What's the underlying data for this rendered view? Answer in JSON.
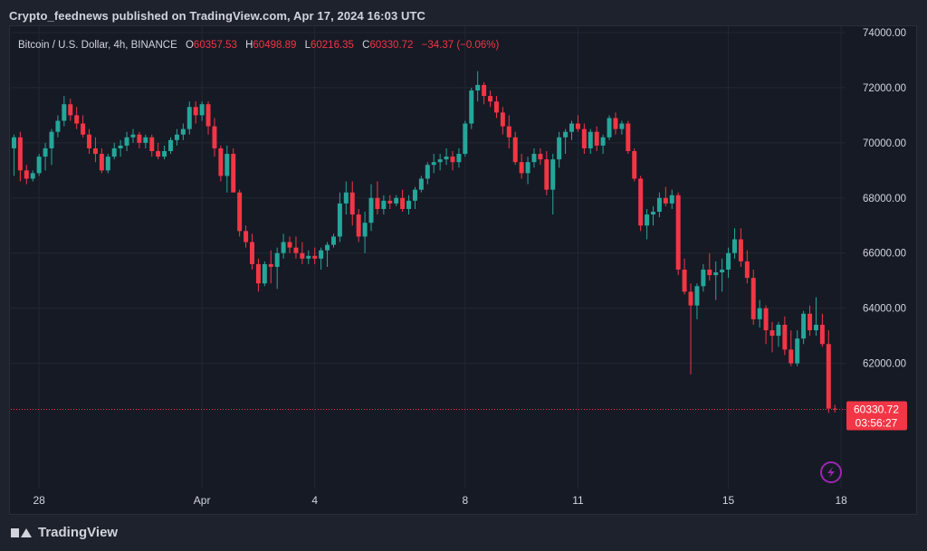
{
  "header": {
    "published": "Crypto_feednews published on TradingView.com, Apr 17, 2024 16:03 UTC"
  },
  "legend": {
    "symbol": "Bitcoin / U.S. Dollar, 4h, BINANCE",
    "o_label": "O",
    "o_value": "60357.53",
    "h_label": "H",
    "h_value": "60498.89",
    "l_label": "L",
    "l_value": "60216.35",
    "c_label": "C",
    "c_value": "60330.72",
    "change": "−34.37 (−0.06%)"
  },
  "price_tag": {
    "price": "60330.72",
    "countdown": "03:56:27"
  },
  "footer": {
    "brand": "TradingView"
  },
  "colors": {
    "up": "#26a69a",
    "down": "#f23645",
    "background": "#161a25",
    "grid": "#232733",
    "text": "#d1d4dc",
    "alert_icon": "#9c27b0"
  },
  "icons": {
    "alert": "lightning-alert-icon",
    "logo": "tradingview-logo-icon"
  },
  "chart_data": {
    "type": "candlestick",
    "interval": "4h",
    "yaxis_side": "right",
    "ylim": [
      59000,
      74000
    ],
    "yticks": [
      "62000.00",
      "64000.00",
      "66000.00",
      "68000.00",
      "70000.00",
      "72000.00",
      "74000.00"
    ],
    "ytick_values": [
      62000,
      64000,
      66000,
      68000,
      70000,
      72000,
      74000
    ],
    "xticks": [
      {
        "label": "28",
        "index": 4
      },
      {
        "label": "Apr",
        "index": 30
      },
      {
        "label": "4",
        "index": 48
      },
      {
        "label": "8",
        "index": 72
      },
      {
        "label": "11",
        "index": 90
      },
      {
        "label": "15",
        "index": 114
      },
      {
        "label": "18",
        "index": 132
      }
    ],
    "last_price": 60330.72,
    "candles": [
      [
        69800,
        70300,
        68800,
        70200
      ],
      [
        70200,
        70400,
        68600,
        69000
      ],
      [
        69000,
        69200,
        68500,
        68700
      ],
      [
        68700,
        69000,
        68600,
        68900
      ],
      [
        68900,
        69600,
        68800,
        69500
      ],
      [
        69500,
        70000,
        69000,
        69800
      ],
      [
        69800,
        70500,
        69200,
        70400
      ],
      [
        70400,
        71000,
        70200,
        70800
      ],
      [
        70800,
        71700,
        70600,
        71400
      ],
      [
        71400,
        71600,
        70800,
        71000
      ],
      [
        71000,
        71300,
        70500,
        70700
      ],
      [
        70700,
        71000,
        70200,
        70300
      ],
      [
        70300,
        70500,
        69600,
        69800
      ],
      [
        69800,
        70200,
        69300,
        69600
      ],
      [
        69600,
        69800,
        68900,
        69000
      ],
      [
        69000,
        69600,
        68900,
        69500
      ],
      [
        69500,
        70000,
        69400,
        69800
      ],
      [
        69800,
        70100,
        69500,
        69900
      ],
      [
        69900,
        70400,
        69700,
        70200
      ],
      [
        70200,
        70500,
        70000,
        70300
      ],
      [
        70300,
        70400,
        69800,
        70000
      ],
      [
        70000,
        70300,
        69800,
        70200
      ],
      [
        70200,
        70300,
        69500,
        69700
      ],
      [
        69700,
        70000,
        69400,
        69500
      ],
      [
        69500,
        69900,
        69400,
        69700
      ],
      [
        69700,
        70200,
        69600,
        70100
      ],
      [
        70100,
        70500,
        69900,
        70300
      ],
      [
        70300,
        70700,
        70100,
        70500
      ],
      [
        70500,
        71500,
        70300,
        71300
      ],
      [
        71300,
        71500,
        70700,
        71000
      ],
      [
        71000,
        71500,
        70800,
        71400
      ],
      [
        71400,
        71500,
        70300,
        70600
      ],
      [
        70600,
        70900,
        69500,
        69800
      ],
      [
        69800,
        69900,
        68600,
        68800
      ],
      [
        68800,
        69900,
        68200,
        69600
      ],
      [
        69600,
        69800,
        68200,
        68200
      ],
      [
        68200,
        68300,
        66600,
        66800
      ],
      [
        66800,
        67000,
        66200,
        66400
      ],
      [
        66400,
        66700,
        65400,
        65600
      ],
      [
        65600,
        65800,
        64600,
        64900
      ],
      [
        64900,
        65700,
        64800,
        65600
      ],
      [
        65600,
        66100,
        64900,
        65500
      ],
      [
        65500,
        66200,
        64700,
        66000
      ],
      [
        66000,
        66700,
        65800,
        66400
      ],
      [
        66400,
        66600,
        66000,
        66200
      ],
      [
        66200,
        66600,
        65800,
        66000
      ],
      [
        66000,
        66400,
        65600,
        65800
      ],
      [
        65800,
        66100,
        65600,
        65900
      ],
      [
        65900,
        66200,
        65600,
        65800
      ],
      [
        65800,
        66200,
        65400,
        66100
      ],
      [
        66100,
        66400,
        65500,
        66300
      ],
      [
        66300,
        66700,
        66200,
        66600
      ],
      [
        66600,
        68200,
        66400,
        67800
      ],
      [
        67800,
        68600,
        67400,
        68200
      ],
      [
        68200,
        68600,
        67000,
        67400
      ],
      [
        67400,
        67600,
        66400,
        66600
      ],
      [
        66600,
        67500,
        66000,
        67100
      ],
      [
        67100,
        68500,
        66800,
        68000
      ],
      [
        68000,
        68600,
        67400,
        67600
      ],
      [
        67600,
        68100,
        67400,
        67900
      ],
      [
        67900,
        68100,
        67600,
        67800
      ],
      [
        67800,
        68100,
        67700,
        68000
      ],
      [
        68000,
        68300,
        67500,
        67600
      ],
      [
        67600,
        68100,
        67400,
        67900
      ],
      [
        67900,
        68400,
        67600,
        68300
      ],
      [
        68300,
        68800,
        68200,
        68700
      ],
      [
        68700,
        69300,
        68500,
        69200
      ],
      [
        69200,
        69600,
        68900,
        69300
      ],
      [
        69300,
        69600,
        69000,
        69400
      ],
      [
        69400,
        69800,
        69200,
        69500
      ],
      [
        69500,
        69700,
        69000,
        69300
      ],
      [
        69300,
        69800,
        69100,
        69600
      ],
      [
        69600,
        70800,
        69500,
        70700
      ],
      [
        70700,
        72000,
        70500,
        71900
      ],
      [
        71900,
        72600,
        71500,
        72100
      ],
      [
        72100,
        72200,
        71400,
        71700
      ],
      [
        71700,
        71900,
        71300,
        71500
      ],
      [
        71500,
        71700,
        70900,
        71100
      ],
      [
        71100,
        71300,
        70300,
        70600
      ],
      [
        70600,
        71000,
        69800,
        70200
      ],
      [
        70200,
        70400,
        69200,
        69300
      ],
      [
        69300,
        69600,
        68700,
        68900
      ],
      [
        68900,
        69500,
        68500,
        69300
      ],
      [
        69300,
        69800,
        69100,
        69600
      ],
      [
        69600,
        69800,
        69200,
        69400
      ],
      [
        69400,
        69700,
        68100,
        68300
      ],
      [
        68300,
        69600,
        67400,
        69400
      ],
      [
        69400,
        70400,
        69100,
        70200
      ],
      [
        70200,
        70500,
        69600,
        70400
      ],
      [
        70400,
        70800,
        70100,
        70700
      ],
      [
        70700,
        71000,
        70400,
        70500
      ],
      [
        70500,
        70700,
        69600,
        69800
      ],
      [
        69800,
        70500,
        69600,
        70400
      ],
      [
        70400,
        70600,
        69700,
        69900
      ],
      [
        69900,
        70300,
        69600,
        70200
      ],
      [
        70200,
        71000,
        70100,
        70900
      ],
      [
        70900,
        71100,
        70300,
        70500
      ],
      [
        70500,
        70800,
        70300,
        70700
      ],
      [
        70700,
        70800,
        69600,
        69700
      ],
      [
        69700,
        69800,
        68600,
        68700
      ],
      [
        68700,
        68800,
        66800,
        67000
      ],
      [
        67000,
        67600,
        66500,
        67400
      ],
      [
        67400,
        67700,
        67000,
        67500
      ],
      [
        67500,
        68200,
        67300,
        68000
      ],
      [
        68000,
        68400,
        67700,
        67800
      ],
      [
        67800,
        68300,
        67600,
        68100
      ],
      [
        68100,
        68200,
        65200,
        65400
      ],
      [
        65400,
        65800,
        64500,
        64600
      ],
      [
        64600,
        64900,
        61600,
        64100
      ],
      [
        64100,
        64900,
        63600,
        64800
      ],
      [
        64800,
        65600,
        64600,
        65400
      ],
      [
        65400,
        66000,
        65000,
        65200
      ],
      [
        65200,
        65700,
        64300,
        65300
      ],
      [
        65300,
        65800,
        64600,
        65400
      ],
      [
        65400,
        66200,
        65100,
        66000
      ],
      [
        66000,
        66900,
        65800,
        66500
      ],
      [
        66500,
        66900,
        65500,
        65700
      ],
      [
        65700,
        66100,
        64900,
        65100
      ],
      [
        65100,
        65400,
        63400,
        63600
      ],
      [
        63600,
        64300,
        63300,
        64000
      ],
      [
        64000,
        64100,
        62700,
        63200
      ],
      [
        63200,
        63500,
        62400,
        63000
      ],
      [
        63000,
        63500,
        62600,
        63400
      ],
      [
        63400,
        63700,
        62300,
        62500
      ],
      [
        62500,
        63200,
        61900,
        62000
      ],
      [
        62000,
        63200,
        61900,
        62900
      ],
      [
        62900,
        63900,
        62700,
        63800
      ],
      [
        63800,
        64100,
        63000,
        63200
      ],
      [
        63200,
        64400,
        63000,
        63400
      ],
      [
        63400,
        63800,
        62600,
        62700
      ],
      [
        62700,
        63200,
        60200,
        60360
      ],
      [
        60357.53,
        60498.89,
        60216.35,
        60330.72
      ]
    ]
  }
}
